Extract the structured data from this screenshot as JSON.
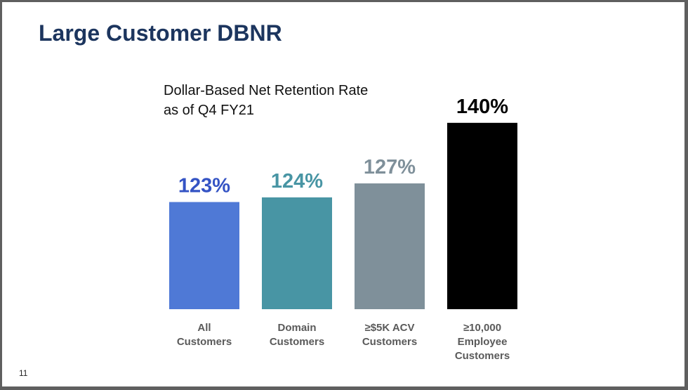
{
  "slide": {
    "title": "Large Customer DBNR",
    "subtitle_line1": "Dollar-Based Net Retention Rate",
    "subtitle_line2": "as of Q4 FY21",
    "page_number": "11"
  },
  "chart_data": {
    "type": "bar",
    "title": "Dollar-Based Net Retention Rate as of Q4 FY21",
    "categories": [
      [
        "All",
        "Customers"
      ],
      [
        "Domain",
        "Customers"
      ],
      [
        "≥$5K ACV",
        "Customers"
      ],
      [
        "≥10,000",
        "Employee",
        "Customers"
      ]
    ],
    "values": [
      123,
      124,
      127,
      140
    ],
    "value_labels": [
      "123%",
      "124%",
      "127%",
      "140%"
    ],
    "colors": [
      "#4f79d6",
      "#4895a4",
      "#7f909a",
      "#000000"
    ],
    "label_colors": [
      "#3453c4",
      "#4895a4",
      "#7f909a",
      "#000000"
    ],
    "ylim": [
      100,
      141
    ],
    "xlabel": "",
    "ylabel": "",
    "grid": false,
    "legend": "none"
  }
}
